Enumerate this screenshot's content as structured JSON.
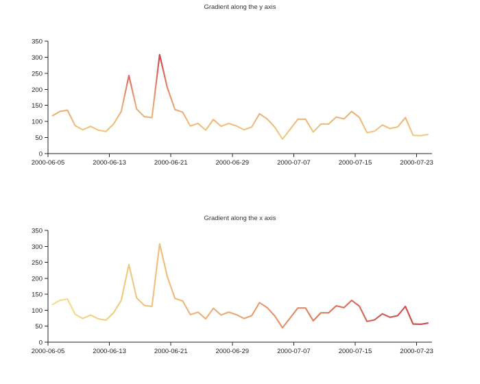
{
  "chart_data": [
    {
      "type": "line",
      "title": "Gradient along the y axis",
      "gradient_direction": "y",
      "xlabel": "",
      "ylabel": "",
      "ylim": [
        0,
        350
      ],
      "yticks": [
        0,
        50,
        100,
        150,
        200,
        250,
        300,
        350
      ],
      "xtick_labels": [
        "2000-06-05",
        "2000-06-13",
        "2000-06-21",
        "2000-06-29",
        "2000-07-07",
        "2000-07-15",
        "2000-07-23"
      ],
      "grid": false,
      "legend": null,
      "gradient_colors": [
        "#f5df8d",
        "#e8a878",
        "#c9474d"
      ],
      "x_start": "2000-06-05",
      "x_step_days": 1,
      "values": [
        117,
        131,
        135,
        87,
        74,
        85,
        73,
        69,
        92,
        131,
        243,
        139,
        115,
        112,
        308,
        205,
        137,
        129,
        86,
        94,
        73,
        106,
        85,
        94,
        86,
        74,
        83,
        124,
        108,
        82,
        45,
        76,
        107,
        107,
        67,
        92,
        92,
        114,
        108,
        131,
        113,
        65,
        70,
        89,
        78,
        83,
        112,
        57,
        56,
        60
      ]
    },
    {
      "type": "line",
      "title": "Gradient along the x axis",
      "gradient_direction": "x",
      "xlabel": "",
      "ylabel": "",
      "ylim": [
        0,
        350
      ],
      "yticks": [
        0,
        50,
        100,
        150,
        200,
        250,
        300,
        350
      ],
      "xtick_labels": [
        "2000-06-05",
        "2000-06-13",
        "2000-06-21",
        "2000-06-29",
        "2000-07-07",
        "2000-07-15",
        "2000-07-23"
      ],
      "grid": false,
      "legend": null,
      "gradient_colors": [
        "#f5df8d",
        "#e8a878",
        "#c9474d"
      ],
      "x_start": "2000-06-05",
      "x_step_days": 1,
      "values": [
        117,
        131,
        135,
        87,
        74,
        85,
        73,
        69,
        92,
        131,
        243,
        139,
        115,
        112,
        308,
        205,
        137,
        129,
        86,
        94,
        73,
        106,
        85,
        94,
        86,
        74,
        83,
        124,
        108,
        82,
        45,
        76,
        107,
        107,
        67,
        92,
        92,
        114,
        108,
        131,
        113,
        65,
        70,
        89,
        78,
        83,
        112,
        57,
        56,
        60
      ]
    }
  ]
}
